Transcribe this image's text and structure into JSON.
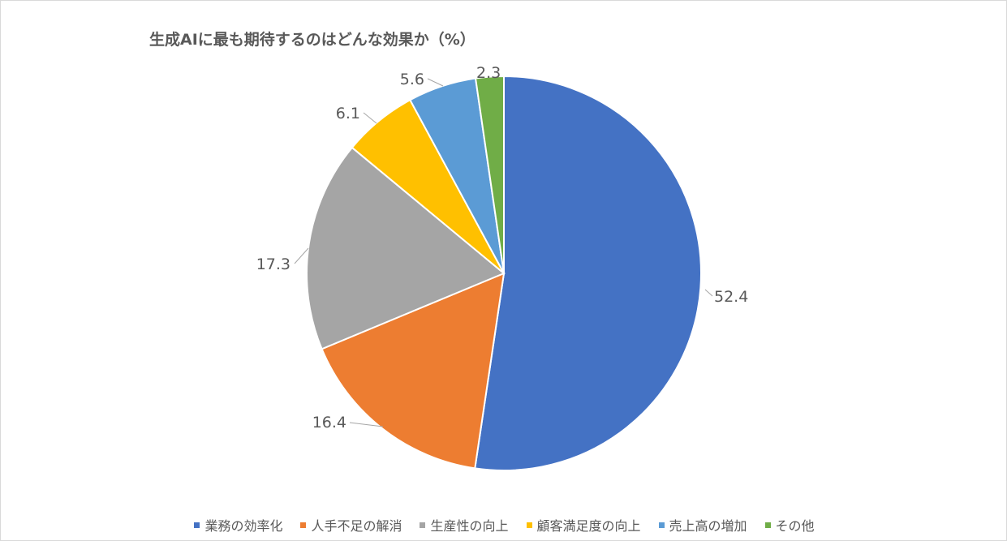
{
  "chart_data": {
    "type": "pie",
    "title": "生成AIに最も期待するのはどんな効果か（%）",
    "slices": [
      {
        "label": "業務の効率化",
        "value": 52.4,
        "value_label": "52.4",
        "color": "#4472c4"
      },
      {
        "label": "人手不足の解消",
        "value": 16.4,
        "value_label": "16.4",
        "color": "#ed7d31"
      },
      {
        "label": "生産性の向上",
        "value": 17.3,
        "value_label": "17.3",
        "color": "#a5a5a5"
      },
      {
        "label": "顧客満足度の向上",
        "value": 6.1,
        "value_label": "6.1",
        "color": "#ffc000"
      },
      {
        "label": "売上高の増加",
        "value": 5.6,
        "value_label": "5.6",
        "color": "#5b9bd5"
      },
      {
        "label": "その他",
        "value": 2.3,
        "value_label": "2.3",
        "color": "#70ad47"
      }
    ],
    "start": "12 o'clock",
    "direction": "clockwise",
    "legend_position": "bottom",
    "data_labels": "outside with leader lines"
  }
}
